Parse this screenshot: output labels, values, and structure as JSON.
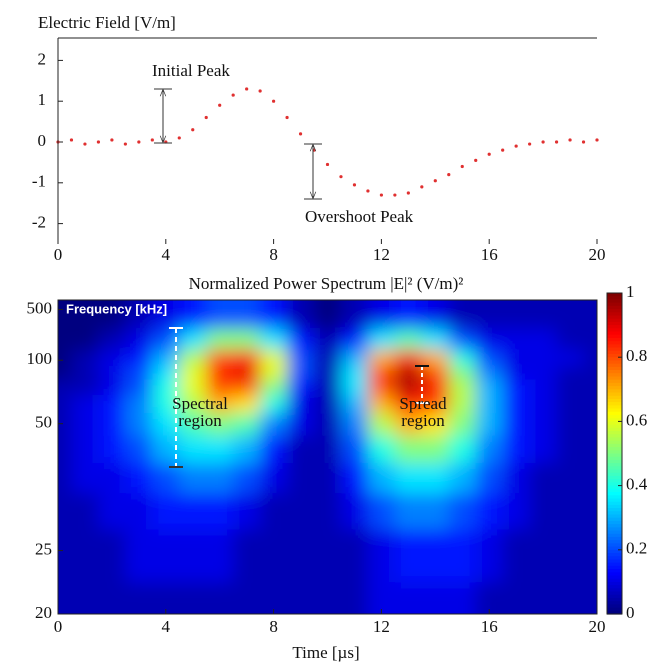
{
  "chart_data": [
    {
      "type": "scatter",
      "title": "Electric Field [V/m]",
      "color": "#e03030",
      "x": [
        0,
        0.5,
        1,
        1.5,
        2,
        2.5,
        3,
        3.5,
        4,
        4.5,
        5,
        5.5,
        6,
        6.5,
        7,
        7.5,
        8,
        8.5,
        9,
        9.5,
        10,
        10.5,
        11,
        11.5,
        12,
        12.5,
        13,
        13.5,
        14,
        14.5,
        15,
        15.5,
        16,
        16.5,
        17,
        17.5,
        18,
        18.5,
        19,
        19.5,
        20
      ],
      "values": [
        0,
        0.05,
        -0.05,
        0,
        0.05,
        -0.05,
        0,
        0.05,
        0,
        0.1,
        0.3,
        0.6,
        0.9,
        1.15,
        1.3,
        1.25,
        1.0,
        0.6,
        0.2,
        -0.2,
        -0.55,
        -0.85,
        -1.05,
        -1.2,
        -1.3,
        -1.3,
        -1.25,
        -1.1,
        -0.95,
        -0.8,
        -0.6,
        -0.45,
        -0.3,
        -0.2,
        -0.1,
        -0.05,
        0,
        0,
        0.05,
        0,
        0.05
      ],
      "xlim": [
        0,
        20
      ],
      "xticks": [
        0,
        4,
        8,
        12,
        16,
        20
      ],
      "ylim": [
        -2.5,
        2.5
      ],
      "yticks": [
        -2,
        -1,
        0,
        1,
        2
      ],
      "annotations": [
        "Initial Peak",
        "Overshoot Peak"
      ]
    },
    {
      "type": "heatmap",
      "title": "Normalized Power Spectrum |E|² (V/m)²",
      "x_label": "Time [µs]",
      "y_label": "Frequency [kHz]",
      "yscale": "reciprocal",
      "colormap": "jet",
      "x": [
        0,
        1,
        2,
        3,
        4,
        5,
        6,
        7,
        8,
        9,
        10,
        11,
        12,
        13,
        14,
        15,
        16,
        17,
        18,
        19,
        20
      ],
      "y": [
        300,
        150,
        100,
        85,
        70,
        60,
        50,
        42,
        35,
        30,
        25,
        20
      ],
      "z": [
        [
          0,
          0,
          0,
          0.05,
          0.1,
          0.15,
          0.2,
          0.2,
          0.15,
          0.05,
          0,
          0.05,
          0.1,
          0.15,
          0.1,
          0.05,
          0.05,
          0.05,
          0.05,
          0.05,
          0.05
        ],
        [
          0,
          0,
          0.05,
          0.1,
          0.2,
          0.35,
          0.5,
          0.5,
          0.35,
          0.15,
          0.05,
          0.15,
          0.35,
          0.45,
          0.35,
          0.2,
          0.1,
          0.1,
          0.1,
          0.05,
          0.05
        ],
        [
          0,
          0.05,
          0.1,
          0.15,
          0.3,
          0.55,
          0.8,
          0.85,
          0.6,
          0.2,
          0.05,
          0.3,
          0.7,
          0.85,
          0.7,
          0.4,
          0.2,
          0.1,
          0.1,
          0.1,
          0.05
        ],
        [
          0,
          0.05,
          0.1,
          0.2,
          0.35,
          0.6,
          0.85,
          0.9,
          0.6,
          0.2,
          0.05,
          0.35,
          0.8,
          0.95,
          0.8,
          0.5,
          0.25,
          0.1,
          0.1,
          0.05,
          0.05
        ],
        [
          0.05,
          0.05,
          0.1,
          0.2,
          0.4,
          0.6,
          0.8,
          0.8,
          0.5,
          0.15,
          0.05,
          0.35,
          0.8,
          0.95,
          0.85,
          0.55,
          0.3,
          0.15,
          0.1,
          0.05,
          0.05
        ],
        [
          0.05,
          0.1,
          0.15,
          0.25,
          0.4,
          0.55,
          0.7,
          0.65,
          0.4,
          0.1,
          0.05,
          0.3,
          0.7,
          0.85,
          0.8,
          0.55,
          0.3,
          0.15,
          0.1,
          0.05,
          0.05
        ],
        [
          0.05,
          0.1,
          0.15,
          0.25,
          0.35,
          0.45,
          0.5,
          0.45,
          0.25,
          0.1,
          0.05,
          0.25,
          0.55,
          0.7,
          0.65,
          0.5,
          0.3,
          0.15,
          0.1,
          0.05,
          0.05
        ],
        [
          0.05,
          0.1,
          0.15,
          0.2,
          0.3,
          0.35,
          0.35,
          0.3,
          0.15,
          0.05,
          0.05,
          0.2,
          0.4,
          0.5,
          0.5,
          0.4,
          0.25,
          0.15,
          0.1,
          0.05,
          0.05
        ],
        [
          0.05,
          0.1,
          0.1,
          0.15,
          0.2,
          0.25,
          0.25,
          0.2,
          0.1,
          0.05,
          0.05,
          0.15,
          0.3,
          0.35,
          0.35,
          0.3,
          0.2,
          0.1,
          0.05,
          0.05,
          0.05
        ],
        [
          0.05,
          0.05,
          0.1,
          0.1,
          0.15,
          0.15,
          0.15,
          0.1,
          0.05,
          0.05,
          0.05,
          0.1,
          0.2,
          0.25,
          0.25,
          0.2,
          0.15,
          0.1,
          0.05,
          0.05,
          0.05
        ],
        [
          0.05,
          0.05,
          0.05,
          0.1,
          0.1,
          0.1,
          0.1,
          0.05,
          0.05,
          0.05,
          0.05,
          0.05,
          0.1,
          0.15,
          0.15,
          0.15,
          0.1,
          0.05,
          0.05,
          0.05,
          0.05
        ],
        [
          0.05,
          0.05,
          0.05,
          0.05,
          0.05,
          0.05,
          0.05,
          0.05,
          0.05,
          0.05,
          0.05,
          0.05,
          0.1,
          0.1,
          0.1,
          0.1,
          0.05,
          0.05,
          0.05,
          0.05,
          0.05
        ]
      ],
      "xlim": [
        0,
        20
      ],
      "xticks": [
        0,
        4,
        8,
        12,
        16,
        20
      ],
      "ylim": [
        20,
        2000
      ],
      "yticks": [
        20,
        25,
        50,
        100,
        500
      ],
      "zlim": [
        0,
        1
      ],
      "zticks": [
        0,
        0.2,
        0.4,
        0.6,
        0.8,
        1
      ],
      "annotations": [
        "Spectral region",
        "Spread region"
      ]
    }
  ]
}
